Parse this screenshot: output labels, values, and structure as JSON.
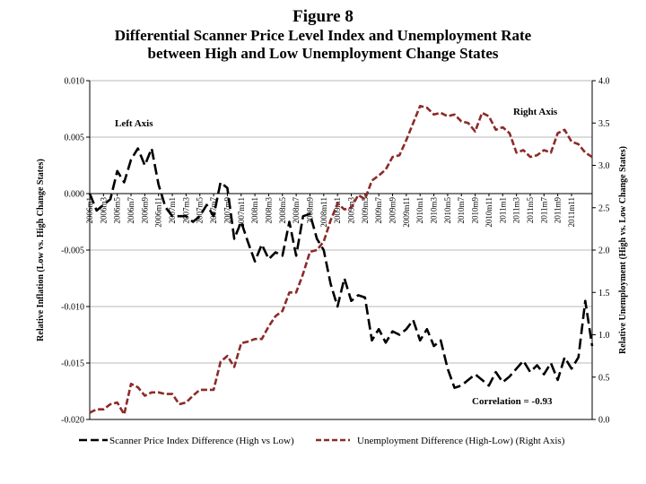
{
  "figure_label": "Figure 8",
  "chart_data": {
    "type": "line",
    "title": "Differential Scanner Price Level Index and Unemployment Rate",
    "subtitle": "between High and Low Unemployment Change States",
    "ylabel_left": "Relative Inflation (Low vs. High Change States)",
    "ylabel_right": "Relative Unemployment (High vs. Low Change States)",
    "ylim_left": [
      -0.02,
      0.01
    ],
    "ylim_right": [
      0.0,
      4.0
    ],
    "yticks_left": [
      "0.010",
      "0.005",
      "0.000",
      "-0.005",
      "-0.010",
      "-0.015",
      "-0.020"
    ],
    "yticks_right": [
      "4.0",
      "3.5",
      "3.0",
      "2.5",
      "2.0",
      "1.5",
      "1.0",
      "0.5",
      "0.0"
    ],
    "xtick_labels": [
      "2006m1",
      "2006m3",
      "2006m5",
      "2006m7",
      "2006m9",
      "2006m11",
      "2007m1",
      "2007m3",
      "2007m5",
      "2007m7",
      "2007m9",
      "2007m11",
      "2008m1",
      "2008m3",
      "2008m5",
      "2008m7",
      "2008m9",
      "2008m11",
      "2009m1",
      "2009m3",
      "2009m5",
      "2009m7",
      "2009m9",
      "2009m11",
      "2010m1",
      "2010m3",
      "2010m5",
      "2010m7",
      "2010m9",
      "2010m11",
      "2011m1",
      "2011m3",
      "2011m5",
      "2011m7",
      "2011m9",
      "2011m11"
    ],
    "annotations": {
      "left_axis": "Left Axis",
      "right_axis": "Right Axis",
      "correlation": "Correlation = -0.93"
    },
    "series": [
      {
        "name": "Scanner Price Index Difference (High vs Low)",
        "axis": "left",
        "style": "dash-black",
        "color": "#000000",
        "values": [
          0.0,
          -0.0015,
          -0.001,
          -0.0005,
          0.002,
          0.001,
          0.003,
          0.004,
          0.0025,
          0.004,
          0.0008,
          -0.0012,
          -0.002,
          -0.002,
          -0.002,
          -0.0025,
          -0.002,
          -0.001,
          -0.002,
          0.001,
          0.0005,
          -0.004,
          -0.0025,
          -0.0043,
          -0.006,
          -0.0045,
          -0.0058,
          -0.0052,
          -0.0055,
          -0.0025,
          -0.0055,
          -0.002,
          -0.0018,
          -0.004,
          -0.005,
          -0.008,
          -0.01,
          -0.0075,
          -0.0095,
          -0.009,
          -0.0092,
          -0.013,
          -0.012,
          -0.0132,
          -0.0122,
          -0.0125,
          -0.012,
          -0.0112,
          -0.013,
          -0.012,
          -0.0135,
          -0.013,
          -0.0155,
          -0.0172,
          -0.017,
          -0.0165,
          -0.016,
          -0.0165,
          -0.017,
          -0.0158,
          -0.0167,
          -0.0162,
          -0.0155,
          -0.0148,
          -0.0158,
          -0.0152,
          -0.016,
          -0.015,
          -0.0165,
          -0.0145,
          -0.0155,
          -0.0145,
          -0.0095,
          -0.0135
        ]
      },
      {
        "name": "Unemployment Difference (High-Low) (Right Axis)",
        "axis": "right",
        "style": "dash-brown",
        "color": "#8b2b28",
        "values": [
          0.08,
          0.12,
          0.12,
          0.18,
          0.2,
          0.06,
          0.42,
          0.38,
          0.28,
          0.32,
          0.32,
          0.3,
          0.3,
          0.18,
          0.2,
          0.28,
          0.35,
          0.35,
          0.35,
          0.68,
          0.75,
          0.62,
          0.9,
          0.92,
          0.95,
          0.95,
          1.1,
          1.22,
          1.28,
          1.5,
          1.5,
          1.72,
          1.98,
          2.0,
          2.1,
          2.35,
          2.55,
          2.48,
          2.5,
          2.65,
          2.6,
          2.82,
          2.88,
          2.95,
          3.1,
          3.12,
          3.3,
          3.5,
          3.7,
          3.68,
          3.6,
          3.62,
          3.58,
          3.6,
          3.52,
          3.5,
          3.4,
          3.62,
          3.58,
          3.42,
          3.45,
          3.38,
          3.15,
          3.18,
          3.1,
          3.12,
          3.18,
          3.15,
          3.38,
          3.42,
          3.28,
          3.25,
          3.15,
          3.1
        ]
      }
    ],
    "legend": [
      {
        "label": "Scanner Price Index Difference (High vs Low)"
      },
      {
        "label": "Unemployment Difference (High-Low) (Right Axis)"
      }
    ],
    "legend_position": "bottom"
  }
}
